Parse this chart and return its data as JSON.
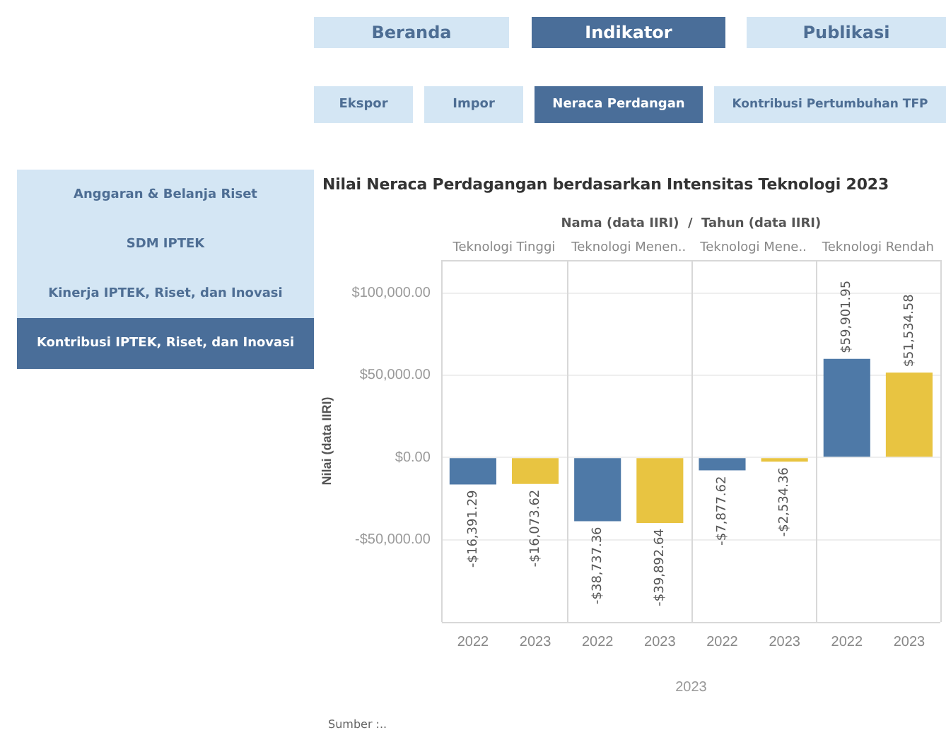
{
  "chart_data": {
    "type": "bar",
    "title": "Nilai Neraca Perdagangan berdasarkan Intensitas Teknologi 2023",
    "xlabel": "2023",
    "ylabel": "Nilai (data IIRI)",
    "categories": [
      "2022",
      "2023",
      "2022",
      "2023",
      "2022",
      "2023",
      "2022",
      "2023"
    ],
    "values": [
      -16391.29,
      -16073.62,
      -38737.36,
      -39892.64,
      -7877.62,
      -2534.36,
      59901.95,
      51534.58
    ],
    "colors": [
      "#4e79a7",
      "#e8c441",
      "#4e79a7",
      "#e8c441",
      "#4e79a7",
      "#e8c441",
      "#4e79a7",
      "#e8c441"
    ],
    "value_labels": [
      "-$16,391.29",
      "-$16,073.62",
      "-$38,737.36",
      "-$39,892.64",
      "-$7,877.62",
      "-$2,534.36",
      "$59,901.95",
      "$51,534.58"
    ],
    "ylim": [
      -100000,
      120000
    ],
    "yticks": [
      {
        "value": -50000,
        "label": "-$50,000.00"
      },
      {
        "value": 0,
        "label": "$0.00"
      },
      {
        "value": 50000,
        "label": "$50,000.00"
      },
      {
        "value": 100000,
        "label": "$100,000.00"
      }
    ],
    "grid": "y",
    "legend": false,
    "annotations": [
      "Beranda",
      "Indikator",
      "Publikasi",
      "Ekspor",
      "Impor",
      "Neraca Perdangan",
      "Kontribusi Pertumbuhan TFP",
      "Anggaran & Belanja Riset",
      "SDM IPTEK",
      "Kinerja IPTEK, Riset, dan Inovasi",
      "Kontribusi IPTEK, Riset, dan Inovasi",
      "Nama (data IIRI)  /  Tahun (data IIRI)",
      "Teknologi Tinggi",
      "Teknologi Menen..",
      "Teknologi Mene..",
      "Teknologi Rendah",
      "Sumber :.."
    ]
  }
}
